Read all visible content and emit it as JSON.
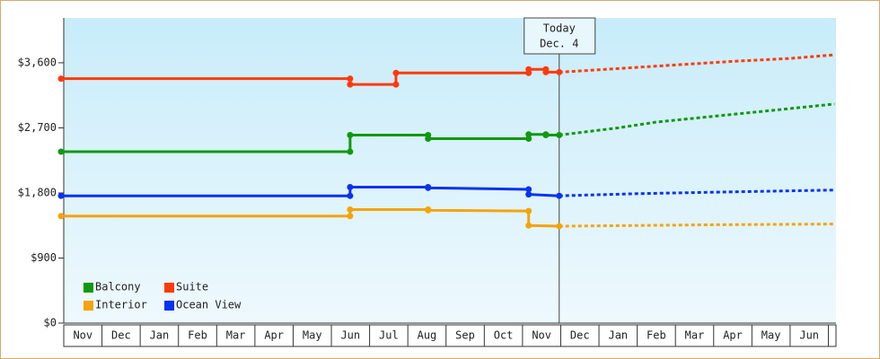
{
  "chart_data": {
    "type": "line",
    "months": [
      "Nov",
      "Dec",
      "Jan",
      "Feb",
      "Mar",
      "Apr",
      "May",
      "Jun",
      "Jul",
      "Aug",
      "Sep",
      "Oct",
      "Nov",
      "Dec",
      "Jan",
      "Feb",
      "Mar",
      "Apr",
      "May",
      "Jun"
    ],
    "xlim": [
      0,
      20.2
    ],
    "ylim": [
      0,
      4220
    ],
    "yticks": [
      {
        "value": 0,
        "label": "$0"
      },
      {
        "value": 900,
        "label": "$900"
      },
      {
        "value": 1800,
        "label": "$1,800"
      },
      {
        "value": 2700,
        "label": "$2,700"
      },
      {
        "value": 3600,
        "label": "$3,600"
      }
    ],
    "annotation": {
      "title": "Today",
      "date": "Dec. 4",
      "x": 12.96
    },
    "series": [
      {
        "name": "Balcony",
        "color": "#109910",
        "x": [
          -0.07,
          7.49,
          7.49,
          9.53,
          9.53,
          12.16,
          12.16,
          12.61,
          12.61,
          12.96
        ],
        "values": [
          2370,
          2370,
          2600,
          2600,
          2550,
          2550,
          2610,
          2610,
          2600,
          2600
        ],
        "forecast": {
          "x": [
            12.96,
            14.5,
            15.5,
            17,
            18.5,
            20.16
          ],
          "values": [
            2600,
            2700,
            2780,
            2860,
            2940,
            3030
          ]
        }
      },
      {
        "name": "Suite",
        "color": "#ff3a0a",
        "x": [
          -0.07,
          7.49,
          7.49,
          8.69,
          8.69,
          12.16,
          12.16,
          12.61,
          12.61,
          12.96
        ],
        "values": [
          3380,
          3380,
          3300,
          3300,
          3460,
          3460,
          3510,
          3510,
          3470,
          3470
        ],
        "forecast": {
          "x": [
            12.96,
            14.5,
            16,
            17.5,
            19,
            20.16
          ],
          "values": [
            3470,
            3520,
            3570,
            3620,
            3660,
            3710
          ]
        }
      },
      {
        "name": "Interior",
        "color": "#f5a30c",
        "x": [
          -0.07,
          7.49,
          7.49,
          9.53,
          9.53,
          12.16,
          12.16,
          12.96
        ],
        "values": [
          1480,
          1480,
          1570,
          1570,
          1560,
          1550,
          1350,
          1340
        ],
        "forecast": {
          "x": [
            12.96,
            15,
            17,
            20.16
          ],
          "values": [
            1340,
            1350,
            1360,
            1370
          ]
        }
      },
      {
        "name": "Ocean View",
        "color": "#0a32f0",
        "x": [
          -0.07,
          7.49,
          7.49,
          9.53,
          9.53,
          12.16,
          12.16,
          12.96
        ],
        "values": [
          1760,
          1760,
          1880,
          1880,
          1870,
          1850,
          1780,
          1760
        ],
        "forecast": {
          "x": [
            12.96,
            15,
            17,
            20.16
          ],
          "values": [
            1760,
            1790,
            1810,
            1840
          ]
        }
      }
    ]
  }
}
